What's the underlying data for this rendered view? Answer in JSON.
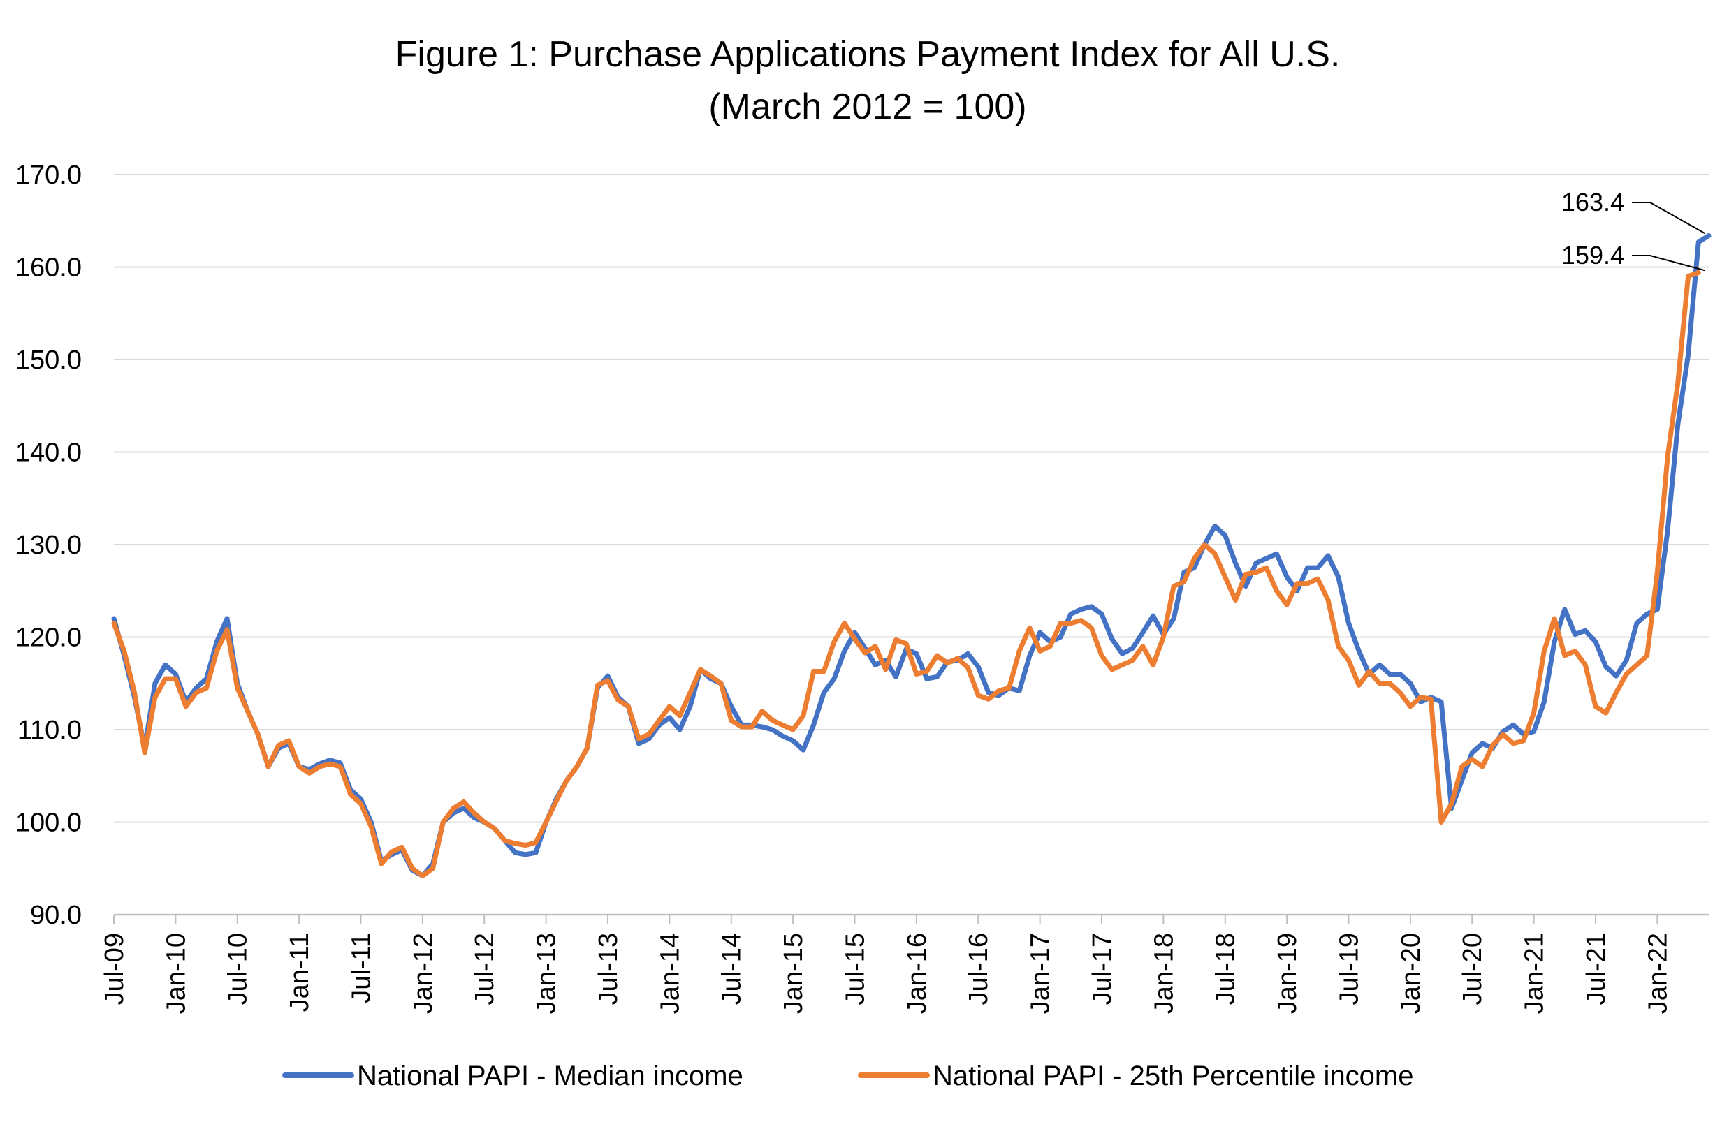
{
  "chart_data": {
    "type": "line",
    "title": "Figure 1: Purchase Applications Payment Index for All U.S.",
    "subtitle": "(March 2012 = 100)",
    "xlabel": "",
    "ylabel": "",
    "ylim": [
      90,
      170
    ],
    "yticks": [
      "90.0",
      "100.0",
      "110.0",
      "120.0",
      "130.0",
      "140.0",
      "150.0",
      "160.0",
      "170.0"
    ],
    "xtick_labels": [
      "Jul-09",
      "Jan-10",
      "Jul-10",
      "Jan-11",
      "Jul-11",
      "Jan-12",
      "Jul-12",
      "Jan-13",
      "Jul-13",
      "Jan-14",
      "Jul-14",
      "Jan-15",
      "Jul-15",
      "Jan-16",
      "Jul-16",
      "Jan-17",
      "Jul-17",
      "Jan-18",
      "Jul-18",
      "Jan-19",
      "Jul-19",
      "Jan-20",
      "Jul-20",
      "Jan-21",
      "Jul-21",
      "Jan-22"
    ],
    "x_start": "Jul-09",
    "x_end": "Jun-22",
    "grid": true,
    "legend_position": "bottom",
    "annotations": [
      "163.4",
      "159.4"
    ],
    "series": [
      {
        "name": "National PAPI - Median income",
        "color": "#4472C4",
        "values": [
          122.0,
          118.0,
          113.5,
          108.0,
          115.0,
          117.0,
          116.0,
          113.0,
          114.5,
          115.5,
          119.5,
          122.0,
          115.0,
          112.0,
          109.5,
          106.0,
          108.0,
          108.5,
          106.0,
          105.7,
          106.3,
          106.7,
          106.4,
          103.5,
          102.5,
          100.0,
          95.8,
          96.5,
          97.0,
          94.8,
          94.2,
          95.5,
          100.0,
          101.0,
          101.5,
          100.5,
          100.0,
          99.3,
          98.0,
          96.7,
          96.5,
          96.7,
          100.0,
          102.5,
          104.5,
          106.0,
          108.0,
          114.5,
          115.8,
          113.5,
          112.5,
          108.5,
          109.0,
          110.5,
          111.3,
          110.0,
          112.5,
          116.5,
          115.5,
          115.0,
          112.5,
          110.5,
          110.5,
          110.3,
          110.0,
          109.3,
          108.8,
          107.8,
          110.5,
          114.0,
          115.5,
          118.5,
          120.5,
          118.8,
          117.0,
          117.5,
          115.7,
          118.7,
          118.2,
          115.5,
          115.7,
          117.3,
          117.5,
          118.2,
          116.8,
          114.0,
          113.7,
          114.5,
          114.2,
          118.0,
          120.5,
          119.5,
          120.0,
          122.5,
          123.0,
          123.3,
          122.5,
          119.8,
          118.2,
          118.8,
          120.5,
          122.3,
          120.3,
          122.0,
          127.0,
          127.5,
          130.0,
          132.0,
          131.0,
          128.0,
          125.5,
          128.0,
          128.5,
          129.0,
          126.5,
          125.0,
          127.5,
          127.5,
          128.8,
          126.5,
          121.5,
          118.5,
          116.0,
          117.0,
          116.0,
          116.0,
          115.0,
          113.0,
          113.5,
          113.0,
          101.5,
          104.5,
          107.5,
          108.5,
          108.0,
          109.8,
          110.5,
          109.5,
          109.8,
          113.0,
          119.5,
          123.0,
          120.3,
          120.7,
          119.5,
          116.8,
          115.8,
          117.5,
          121.5,
          122.5,
          123.0,
          131.5,
          143.0,
          150.5,
          162.7,
          163.4
        ]
      },
      {
        "name": "National PAPI - 25th Percentile income",
        "color": "#ED7D31",
        "values": [
          121.5,
          118.5,
          114.0,
          107.5,
          113.5,
          115.5,
          115.5,
          112.5,
          114.0,
          114.5,
          118.5,
          120.8,
          114.5,
          112.0,
          109.5,
          106.0,
          108.3,
          108.8,
          106.0,
          105.3,
          106.0,
          106.3,
          106.0,
          103.0,
          102.0,
          99.5,
          95.5,
          96.8,
          97.3,
          95.0,
          94.2,
          95.0,
          100.0,
          101.5,
          102.2,
          101.0,
          100.0,
          99.3,
          98.0,
          97.7,
          97.5,
          97.8,
          100.0,
          102.3,
          104.5,
          106.0,
          108.0,
          114.8,
          115.3,
          113.2,
          112.5,
          109.0,
          109.5,
          111.0,
          112.5,
          111.5,
          114.0,
          116.5,
          115.8,
          115.0,
          111.0,
          110.3,
          110.3,
          112.0,
          111.0,
          110.5,
          110.0,
          111.5,
          116.3,
          116.3,
          119.5,
          121.5,
          119.8,
          118.3,
          119.0,
          116.5,
          119.7,
          119.3,
          116.0,
          116.3,
          118.0,
          117.2,
          117.7,
          116.7,
          113.7,
          113.3,
          114.2,
          114.5,
          118.5,
          121.0,
          118.5,
          119.0,
          121.5,
          121.5,
          121.8,
          121.0,
          118.0,
          116.5,
          117.0,
          117.5,
          119.0,
          117.0,
          120.0,
          125.5,
          126.0,
          128.5,
          130.0,
          129.0,
          126.5,
          124.0,
          126.8,
          127.0,
          127.5,
          125.0,
          123.5,
          125.8,
          125.8,
          126.3,
          124.0,
          119.0,
          117.5,
          114.8,
          116.3,
          115.0,
          115.0,
          114.0,
          112.5,
          113.5,
          113.3,
          100.0,
          102.0,
          106.0,
          106.8,
          106.0,
          108.3,
          109.5,
          108.5,
          108.8,
          111.8,
          118.5,
          122.0,
          118.0,
          118.5,
          117.0,
          112.5,
          111.8,
          114.0,
          116.0,
          117.0,
          118.0,
          127.0,
          139.5,
          147.5,
          159.0,
          159.4
        ]
      }
    ]
  }
}
